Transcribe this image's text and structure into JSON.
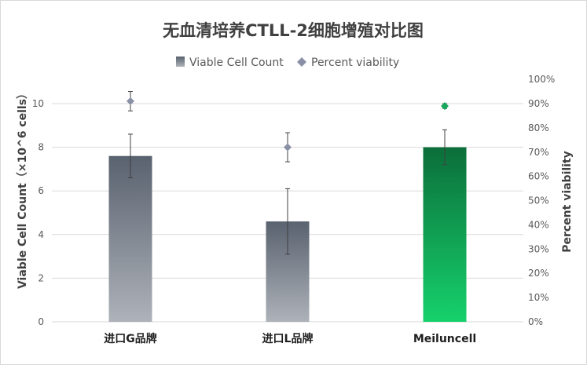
{
  "chart_data": {
    "type": "bar",
    "title": "无血清培养CTLL-2细胞增殖对比图",
    "categories": [
      "进口G品牌",
      "进口L品牌",
      "Meiluncell"
    ],
    "series": [
      {
        "name": "Viable Cell Count",
        "axis": "left",
        "values": [
          7.6,
          4.6,
          8.0
        ],
        "error": [
          1.0,
          1.5,
          0.8
        ]
      },
      {
        "name": "Percent viability",
        "axis": "right",
        "unit": "%",
        "values": [
          91,
          72,
          89
        ],
        "error": [
          4,
          6,
          1
        ]
      }
    ],
    "ylabel": "Viable Cell Count（×10^6 cells）",
    "y2label": "Percent  viability",
    "ylim": [
      0,
      10
    ],
    "yticks": [
      "0",
      "2",
      "4",
      "6",
      "8",
      "10"
    ],
    "y2lim": [
      0,
      100
    ],
    "y2ticks": [
      "0%",
      "10%",
      "20%",
      "30%",
      "40%",
      "50%",
      "60%",
      "70%",
      "80%",
      "90%",
      "100%"
    ],
    "grid": true,
    "legend_position": "top",
    "colors": {
      "bar_gray_top": "#59626f",
      "bar_gray_bottom": "#aeb2b9",
      "bar_green_top": "#0b6e3a",
      "bar_green_bottom": "#16d16c",
      "marker_gray": "#8a90a6",
      "marker_green": "#17a85c",
      "grid": "#d9d9d9",
      "error_bar": "#404040"
    }
  }
}
